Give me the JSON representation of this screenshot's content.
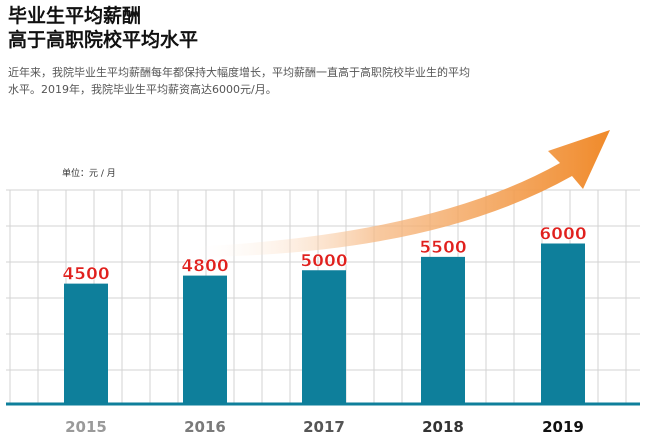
{
  "title_line1": "毕业生平均薪酬",
  "title_line2": "高于高职院校平均水平",
  "description": "近年来，我院毕业生平均薪酬每年都保持大幅度增长，平均薪酬一直高于高职院校毕业生的平均水平。2019年，我院毕业生平均薪资高达6000元/月。",
  "chart_data": {
    "type": "bar",
    "unit_label": "单位：元 / 月",
    "categories": [
      "2015",
      "2016",
      "2017",
      "2018",
      "2019"
    ],
    "values": [
      4500,
      4800,
      5000,
      5500,
      6000
    ],
    "ylim": [
      0,
      8000
    ],
    "grid": true,
    "legend": "none",
    "colors": {
      "bar": "#0e7f9b",
      "value_label": "#e0201d",
      "arrow": "#f08a2a",
      "grid": "#d3d3d3",
      "baseline": "#0e7f9b"
    }
  }
}
